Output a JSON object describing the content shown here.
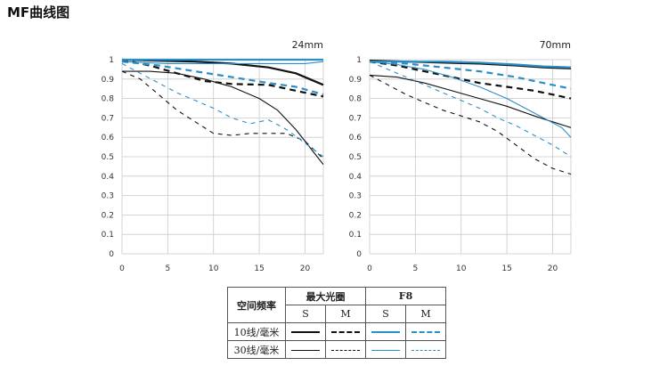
{
  "page": {
    "title": "MF曲线图"
  },
  "colors": {
    "max_aperture": "#111111",
    "f8": "#2b8fc7"
  },
  "chart_data": [
    {
      "type": "line",
      "title": "24mm",
      "xlim": [
        0,
        22
      ],
      "ylim": [
        0,
        1
      ],
      "xticks": [
        "0",
        "5",
        "10",
        "15",
        "20"
      ],
      "yticks": [
        "0",
        "0.1",
        "0.2",
        "0.3",
        "0.4",
        "0.5",
        "0.6",
        "0.7",
        "0.8",
        "0.9",
        "1"
      ],
      "series": [
        {
          "aperture": "max",
          "lpmm": 10,
          "dir": "S",
          "x": [
            0,
            4,
            8,
            12,
            16,
            19,
            22
          ],
          "y": [
            1.0,
            0.995,
            0.99,
            0.98,
            0.96,
            0.93,
            0.87
          ]
        },
        {
          "aperture": "max",
          "lpmm": 10,
          "dir": "M",
          "x": [
            0,
            3,
            6,
            9,
            12,
            16,
            19,
            22
          ],
          "y": [
            1.0,
            0.97,
            0.93,
            0.89,
            0.875,
            0.87,
            0.84,
            0.81
          ]
        },
        {
          "aperture": "max",
          "lpmm": 30,
          "dir": "S",
          "x": [
            0,
            3,
            6,
            9,
            12,
            15,
            17,
            19,
            21,
            22
          ],
          "y": [
            0.94,
            0.94,
            0.93,
            0.9,
            0.86,
            0.8,
            0.74,
            0.64,
            0.52,
            0.46
          ]
        },
        {
          "aperture": "max",
          "lpmm": 30,
          "dir": "M",
          "x": [
            0,
            2,
            4,
            6,
            8,
            10,
            12,
            14,
            16,
            18,
            20,
            22
          ],
          "y": [
            0.94,
            0.9,
            0.82,
            0.74,
            0.68,
            0.62,
            0.61,
            0.62,
            0.62,
            0.62,
            0.58,
            0.49
          ]
        },
        {
          "aperture": "F8",
          "lpmm": 10,
          "dir": "S",
          "x": [
            0,
            5,
            10,
            15,
            22
          ],
          "y": [
            1.0,
            1.0,
            1.0,
            1.0,
            1.0
          ]
        },
        {
          "aperture": "F8",
          "lpmm": 10,
          "dir": "M",
          "x": [
            0,
            4,
            8,
            12,
            16,
            19,
            22
          ],
          "y": [
            0.99,
            0.97,
            0.94,
            0.91,
            0.88,
            0.86,
            0.82
          ]
        },
        {
          "aperture": "F8",
          "lpmm": 30,
          "dir": "S",
          "x": [
            0,
            5,
            10,
            15,
            20,
            22
          ],
          "y": [
            0.99,
            0.98,
            0.98,
            0.98,
            0.98,
            0.99
          ]
        },
        {
          "aperture": "F8",
          "lpmm": 30,
          "dir": "M",
          "x": [
            0,
            2,
            4,
            6,
            8,
            10,
            12,
            14,
            16,
            18,
            20,
            22
          ],
          "y": [
            0.98,
            0.93,
            0.88,
            0.83,
            0.79,
            0.75,
            0.7,
            0.67,
            0.69,
            0.64,
            0.57,
            0.5
          ]
        }
      ]
    },
    {
      "type": "line",
      "title": "70mm",
      "xlim": [
        0,
        22
      ],
      "ylim": [
        0,
        1
      ],
      "xticks": [
        "0",
        "5",
        "10",
        "15",
        "20"
      ],
      "yticks": [
        "0",
        "0.1",
        "0.2",
        "0.3",
        "0.4",
        "0.5",
        "0.6",
        "0.7",
        "0.8",
        "0.9",
        "1"
      ],
      "series": [
        {
          "aperture": "max",
          "lpmm": 10,
          "dir": "S",
          "x": [
            0,
            4,
            8,
            12,
            16,
            19,
            22
          ],
          "y": [
            0.995,
            0.99,
            0.985,
            0.98,
            0.97,
            0.96,
            0.955
          ]
        },
        {
          "aperture": "max",
          "lpmm": 10,
          "dir": "M",
          "x": [
            0,
            3,
            6,
            9,
            12,
            15,
            18,
            20,
            22
          ],
          "y": [
            0.99,
            0.97,
            0.94,
            0.91,
            0.88,
            0.86,
            0.84,
            0.82,
            0.8
          ]
        },
        {
          "aperture": "max",
          "lpmm": 30,
          "dir": "S",
          "x": [
            0,
            3,
            6,
            9,
            12,
            15,
            18,
            20,
            22
          ],
          "y": [
            0.92,
            0.91,
            0.88,
            0.84,
            0.8,
            0.76,
            0.71,
            0.68,
            0.65
          ]
        },
        {
          "aperture": "max",
          "lpmm": 30,
          "dir": "M",
          "x": [
            0,
            2,
            4,
            6,
            8,
            10,
            12,
            14,
            16,
            18,
            20,
            22
          ],
          "y": [
            0.92,
            0.87,
            0.82,
            0.78,
            0.74,
            0.71,
            0.68,
            0.63,
            0.56,
            0.49,
            0.44,
            0.41
          ]
        },
        {
          "aperture": "F8",
          "lpmm": 10,
          "dir": "S",
          "x": [
            0,
            4,
            8,
            12,
            16,
            19,
            22
          ],
          "y": [
            0.99,
            0.99,
            0.99,
            0.985,
            0.975,
            0.965,
            0.96
          ]
        },
        {
          "aperture": "F8",
          "lpmm": 10,
          "dir": "M",
          "x": [
            0,
            4,
            8,
            12,
            16,
            19,
            22
          ],
          "y": [
            0.99,
            0.98,
            0.96,
            0.94,
            0.91,
            0.88,
            0.85
          ]
        },
        {
          "aperture": "F8",
          "lpmm": 30,
          "dir": "S",
          "x": [
            0,
            3,
            6,
            9,
            12,
            15,
            17,
            19,
            21,
            22
          ],
          "y": [
            0.99,
            0.975,
            0.95,
            0.91,
            0.86,
            0.8,
            0.75,
            0.7,
            0.65,
            0.6
          ]
        },
        {
          "aperture": "F8",
          "lpmm": 30,
          "dir": "M",
          "x": [
            0,
            2,
            4,
            6,
            8,
            10,
            12,
            14,
            16,
            18,
            20,
            22
          ],
          "y": [
            0.99,
            0.95,
            0.91,
            0.87,
            0.83,
            0.79,
            0.75,
            0.7,
            0.66,
            0.61,
            0.56,
            0.5
          ]
        }
      ]
    }
  ],
  "legend": {
    "header_freq": "空间频率",
    "header_max": "最大光圈",
    "header_f8": "F8",
    "s_label": "S",
    "m_label": "M",
    "row_10": "10线/毫米",
    "row_30": "30线/毫米"
  }
}
